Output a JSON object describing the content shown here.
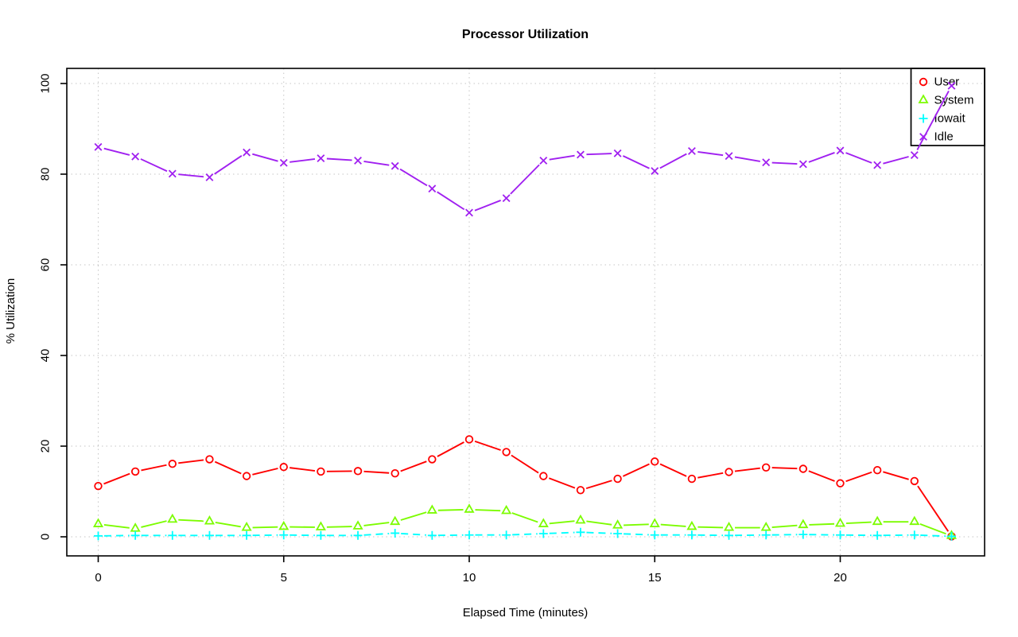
{
  "title": "Processor Utilization",
  "x_axis": {
    "label": "Elapsed Time (minutes)"
  },
  "y_axis": {
    "label": "% Utilization"
  },
  "colors": {
    "background": "#ffffff",
    "grid": "#c6c6c6",
    "axis": "#000000",
    "user": "#ff0000",
    "system": "#7cfc00",
    "iowait": "#00ffff",
    "idle": "#a020f0"
  },
  "chart_data": {
    "type": "line",
    "title": "Processor Utilization",
    "xlabel": "Elapsed Time (minutes)",
    "ylabel": "% Utilization",
    "xlim": [
      0,
      23
    ],
    "ylim": [
      0,
      100
    ],
    "xticks": [
      0,
      5,
      10,
      15,
      20
    ],
    "yticks": [
      0,
      20,
      40,
      60,
      80,
      100
    ],
    "grid": "dotted",
    "legend_position": "top-right",
    "x": [
      0,
      1,
      2,
      3,
      4,
      5,
      6,
      7,
      8,
      9,
      10,
      11,
      12,
      13,
      14,
      15,
      16,
      17,
      18,
      19,
      20,
      21,
      22,
      23
    ],
    "series": [
      {
        "name": "User",
        "color": "#ff0000",
        "marker": "circle",
        "linestyle": "solid",
        "values": [
          11.2,
          14.4,
          16.1,
          17.1,
          13.4,
          15.4,
          14.4,
          14.5,
          14.0,
          17.1,
          21.5,
          18.7,
          13.4,
          10.3,
          12.8,
          16.6,
          12.8,
          14.3,
          15.3,
          15.0,
          11.8,
          14.7,
          12.3,
          0.1
        ]
      },
      {
        "name": "System",
        "color": "#7cfc00",
        "marker": "triangle",
        "linestyle": "solid",
        "values": [
          2.8,
          1.8,
          3.8,
          3.4,
          2.0,
          2.2,
          2.1,
          2.3,
          3.3,
          5.8,
          6.0,
          5.7,
          2.8,
          3.6,
          2.5,
          2.8,
          2.2,
          2.0,
          2.0,
          2.6,
          2.9,
          3.3,
          3.3,
          0.2
        ]
      },
      {
        "name": "Iowait",
        "color": "#00ffff",
        "marker": "plus",
        "linestyle": "dashed",
        "values": [
          0.2,
          0.3,
          0.3,
          0.3,
          0.3,
          0.4,
          0.3,
          0.3,
          0.8,
          0.3,
          0.4,
          0.4,
          0.7,
          1.0,
          0.7,
          0.4,
          0.4,
          0.3,
          0.4,
          0.5,
          0.4,
          0.3,
          0.4,
          0.1
        ]
      },
      {
        "name": "Idle",
        "color": "#a020f0",
        "marker": "x",
        "linestyle": "solid",
        "values": [
          86.0,
          83.9,
          80.1,
          79.3,
          84.8,
          82.5,
          83.5,
          83.0,
          81.8,
          76.8,
          71.5,
          74.7,
          83.0,
          84.3,
          84.6,
          80.7,
          85.1,
          84.0,
          82.6,
          82.2,
          85.2,
          82.0,
          84.2,
          99.5
        ]
      }
    ]
  }
}
